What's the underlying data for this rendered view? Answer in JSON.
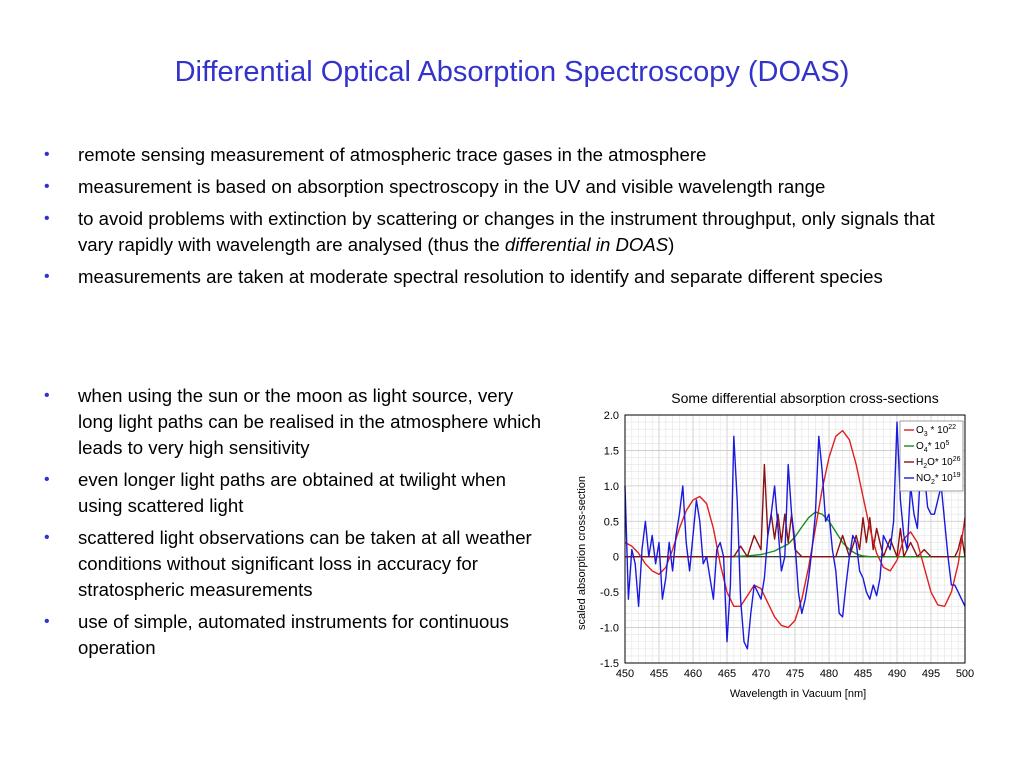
{
  "slide": {
    "title": "Differential Optical Absorption Spectroscopy (DOAS)",
    "bullets_top": [
      {
        "text": "remote sensing measurement of atmospheric trace gases in the atmosphere",
        "em": "",
        "tail": ""
      },
      {
        "text": "measurement is based on absorption spectroscopy in the UV and visible wavelength range",
        "em": "",
        "tail": ""
      },
      {
        "text": "to avoid problems with extinction by scattering or changes in the instrument throughput, only signals that vary rapidly with wavelength are analysed (thus the ",
        "em": "differential in DOAS",
        "tail": ")"
      },
      {
        "text": "measurements are taken at moderate spectral resolution to identify and separate different species",
        "em": "",
        "tail": ""
      }
    ],
    "bullets_left": [
      {
        "text": "when using the sun or the moon as light source, very long light paths can be realised in the atmosphere which leads to very high sensitivity"
      },
      {
        "text": "even longer light paths are obtained at twilight when using scattered light"
      },
      {
        "text": "scattered light observations can be taken at all weather conditions without significant loss in accuracy for stratospheric measurements"
      },
      {
        "text": "use of simple, automated instruments for continuous operation"
      }
    ]
  },
  "colors": {
    "title": "#3333cc",
    "bullet": "#3333cc",
    "o3": "#e02020",
    "o4": "#1a8c1a",
    "h2o": "#8b1010",
    "no2": "#1a1adc"
  },
  "chart_data": {
    "type": "line",
    "title": "Some differential absorption cross-sections",
    "xlabel": "Wavelength in Vacuum [nm]",
    "ylabel": "scaled absorption cross-section",
    "xlim": [
      450,
      500
    ],
    "ylim": [
      -1.5,
      2.0
    ],
    "xticks": [
      "450",
      "455",
      "460",
      "465",
      "470",
      "475",
      "480",
      "485",
      "490",
      "495",
      "500"
    ],
    "yticks": [
      "2.0",
      "1.5",
      "1.0",
      "0.5",
      "0",
      "-0.5",
      "-1.0",
      "-1.5"
    ],
    "grid": true,
    "legend_position": "top-right",
    "series": [
      {
        "key": "o3",
        "name_main": "O",
        "name_sub": "3",
        "name_rest": " * 10",
        "name_sup": "22",
        "x": [
          450,
          451,
          452,
          453,
          454,
          455,
          456,
          457,
          458,
          459,
          460,
          461,
          462,
          463,
          464,
          465,
          466,
          467,
          468,
          469,
          470,
          471,
          472,
          473,
          474,
          475,
          476,
          477,
          478,
          479,
          480,
          481,
          482,
          483,
          484,
          485,
          486,
          487,
          488,
          489,
          490,
          491,
          492,
          493,
          494,
          495,
          496,
          497,
          498,
          499,
          500
        ],
        "y": [
          0.2,
          0.15,
          0.05,
          -0.1,
          -0.2,
          -0.25,
          -0.15,
          0.1,
          0.4,
          0.65,
          0.8,
          0.85,
          0.75,
          0.4,
          -0.1,
          -0.5,
          -0.7,
          -0.7,
          -0.55,
          -0.4,
          -0.45,
          -0.65,
          -0.85,
          -0.97,
          -1.0,
          -0.9,
          -0.6,
          -0.15,
          0.4,
          0.95,
          1.4,
          1.7,
          1.78,
          1.65,
          1.3,
          0.85,
          0.4,
          0.05,
          -0.15,
          -0.2,
          -0.05,
          0.25,
          0.35,
          0.2,
          -0.15,
          -0.5,
          -0.68,
          -0.7,
          -0.5,
          -0.1,
          0.55
        ]
      },
      {
        "key": "o4",
        "name_main": "O",
        "name_sub": "4",
        "name_rest": "* 10",
        "name_sup": "5",
        "x": [
          450,
          460,
          465,
          468,
          470,
          472,
          474,
          475,
          476,
          477,
          478,
          479,
          480,
          481,
          482,
          483,
          484,
          485,
          486,
          490,
          500
        ],
        "y": [
          0,
          0,
          0,
          0.01,
          0.03,
          0.08,
          0.18,
          0.28,
          0.42,
          0.55,
          0.63,
          0.6,
          0.5,
          0.35,
          0.2,
          0.1,
          0.04,
          0.01,
          0,
          0,
          0
        ]
      },
      {
        "key": "h2o",
        "name_main": "H",
        "name_sub": "2",
        "name_rest": "O* 10",
        "name_sup": "26",
        "x": [
          450,
          466,
          467,
          468,
          469,
          470,
          470.5,
          471,
          471.5,
          472,
          472.5,
          473,
          473.5,
          474,
          474.5,
          475,
          476,
          477,
          478,
          479,
          480,
          481,
          482,
          483,
          484,
          484.5,
          485,
          485.5,
          486,
          486.5,
          487,
          488,
          489,
          490,
          490.5,
          491,
          492,
          493,
          494,
          495,
          496,
          497,
          497.5,
          498,
          498.5,
          499,
          499.5,
          500
        ],
        "y": [
          0,
          0,
          0.15,
          0,
          0.3,
          0.1,
          1.3,
          0.3,
          0.6,
          0.25,
          0.6,
          0.2,
          0.6,
          0.2,
          0.6,
          0.1,
          0,
          0,
          0,
          0,
          0,
          0,
          0.3,
          0,
          0.3,
          0.1,
          0.55,
          0.2,
          0.55,
          0.1,
          0.4,
          0,
          0.25,
          0,
          0.4,
          0,
          0.2,
          0,
          0.1,
          0,
          0,
          0,
          0,
          0,
          0,
          0.1,
          0.3,
          0
        ]
      },
      {
        "key": "no2",
        "name_main": "NO",
        "name_sub": "2",
        "name_rest": "* 10",
        "name_sup": "19",
        "x": [
          450,
          450.5,
          451,
          451.5,
          452,
          452.5,
          453,
          453.5,
          454,
          454.5,
          455,
          455.5,
          456,
          456.5,
          457,
          457.5,
          458,
          458.5,
          459,
          459.5,
          460,
          460.5,
          461,
          461.5,
          462,
          462.5,
          463,
          463.5,
          464,
          464.5,
          465,
          465.5,
          466,
          466.5,
          467,
          467.5,
          468,
          468.5,
          469,
          469.5,
          470,
          470.5,
          471,
          471.5,
          472,
          472.5,
          473,
          473.5,
          474,
          474.5,
          475,
          475.5,
          476,
          476.5,
          477,
          477.5,
          478,
          478.5,
          479,
          479.5,
          480,
          480.5,
          481,
          481.5,
          482,
          482.5,
          483,
          483.5,
          484,
          484.5,
          485,
          485.5,
          486,
          486.5,
          487,
          487.5,
          488,
          488.5,
          489,
          489.5,
          490,
          490.5,
          491,
          491.5,
          492,
          492.5,
          493,
          493.5,
          494,
          494.5,
          495,
          495.5,
          496,
          496.5,
          497,
          497.5,
          498,
          498.5,
          499,
          499.5,
          500
        ],
        "y": [
          1.0,
          -0.6,
          0.1,
          -0.1,
          -0.7,
          0.1,
          0.5,
          0.0,
          0.3,
          -0.1,
          0.2,
          -0.6,
          -0.3,
          0.2,
          -0.2,
          0.3,
          0.6,
          1.0,
          0.2,
          -0.2,
          0.3,
          0.8,
          0.5,
          -0.1,
          0.0,
          -0.3,
          -0.6,
          0.1,
          0.2,
          0.0,
          -1.2,
          -0.4,
          1.7,
          0.8,
          -0.6,
          -1.2,
          -1.3,
          -0.8,
          -0.4,
          -0.5,
          -0.6,
          -0.3,
          0.3,
          0.6,
          1.0,
          0.4,
          -0.2,
          0.0,
          1.3,
          0.6,
          0.2,
          -0.5,
          -0.8,
          -0.6,
          -0.3,
          0.1,
          0.6,
          1.7,
          1.2,
          0.5,
          0.6,
          0.1,
          -0.2,
          -0.8,
          -0.85,
          -0.4,
          0.0,
          0.3,
          0.2,
          -0.2,
          -0.3,
          -0.5,
          -0.6,
          -0.4,
          -0.55,
          -0.3,
          0.3,
          0.2,
          0.1,
          0.5,
          1.9,
          0.8,
          0.3,
          0.1,
          1.0,
          0.6,
          0.4,
          1.3,
          1.2,
          0.7,
          0.6,
          0.6,
          0.8,
          1.0,
          0.5,
          0.0,
          -0.4,
          -0.4,
          -0.5,
          -0.6,
          -0.7
        ]
      }
    ]
  }
}
